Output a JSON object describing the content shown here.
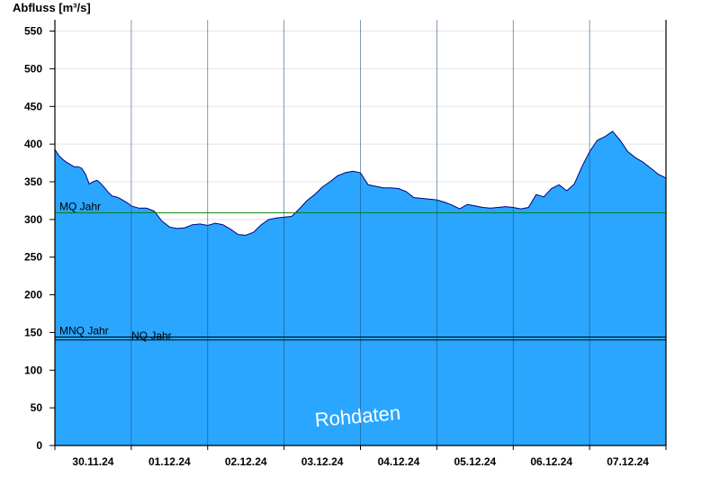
{
  "chart_data": {
    "type": "area",
    "title": "",
    "ylabel": "Abfluss [m³/s]",
    "xlabel": "",
    "ylim": [
      0,
      565
    ],
    "yticks": [
      0,
      50,
      100,
      150,
      200,
      250,
      300,
      350,
      400,
      450,
      500,
      550
    ],
    "xlim_days": [
      0,
      8
    ],
    "x_tick_labels": [
      "30.11.24",
      "01.12.24",
      "02.12.24",
      "03.12.24",
      "04.12.24",
      "05.12.24",
      "06.12.24",
      "07.12.24"
    ],
    "grid": true,
    "fill_color": "#2aa6ff",
    "line_color": "#000080",
    "series": [
      {
        "x": [
          0.0,
          0.05,
          0.1,
          0.15,
          0.2,
          0.25,
          0.3,
          0.35,
          0.4,
          0.45,
          0.5,
          0.55,
          0.6,
          0.65,
          0.7,
          0.75,
          0.8,
          0.85,
          0.9,
          0.95,
          1.0,
          1.1,
          1.2,
          1.3,
          1.4,
          1.5,
          1.6,
          1.7,
          1.8,
          1.9,
          2.0,
          2.1,
          2.2,
          2.3,
          2.4,
          2.5,
          2.6,
          2.7,
          2.8,
          2.9,
          3.0,
          3.1,
          3.2,
          3.3,
          3.4,
          3.5,
          3.6,
          3.7,
          3.8,
          3.9,
          4.0,
          4.1,
          4.2,
          4.3,
          4.4,
          4.5,
          4.6,
          4.7,
          4.8,
          4.9,
          5.0,
          5.1,
          5.2,
          5.3,
          5.4,
          5.5,
          5.6,
          5.7,
          5.8,
          5.9,
          6.0,
          6.1,
          6.2,
          6.3,
          6.4,
          6.5,
          6.6,
          6.7,
          6.8,
          6.9,
          7.0,
          7.1,
          7.2,
          7.3,
          7.4,
          7.5,
          7.6,
          7.7,
          7.8,
          7.9,
          8.0
        ],
        "y": [
          393,
          385,
          380,
          376,
          373,
          370,
          370,
          368,
          360,
          347,
          350,
          352,
          348,
          342,
          336,
          331,
          330,
          328,
          325,
          322,
          318,
          315,
          315,
          311,
          298,
          290,
          288,
          289,
          293,
          294,
          292,
          295,
          293,
          287,
          280,
          279,
          283,
          293,
          300,
          302,
          303,
          304,
          314,
          325,
          333,
          343,
          350,
          358,
          362,
          364,
          362,
          346,
          344,
          342,
          342,
          341,
          337,
          329,
          328,
          327,
          326,
          323,
          319,
          314,
          320,
          318,
          316,
          315,
          316,
          317,
          316,
          314,
          316,
          333,
          330,
          341,
          346,
          338,
          347,
          370,
          390,
          405,
          410,
          417,
          405,
          390,
          382,
          376,
          368,
          360,
          355
        ]
      }
    ],
    "reference_lines": [
      {
        "label": "MQ Jahr",
        "value": 309,
        "color": "#008000"
      },
      {
        "label": "MNQ Jahr",
        "value": 144,
        "color": "#000000"
      },
      {
        "label": "NQ Jahr",
        "value": 140,
        "color": "#000000"
      }
    ],
    "watermark": "Rohdaten"
  }
}
